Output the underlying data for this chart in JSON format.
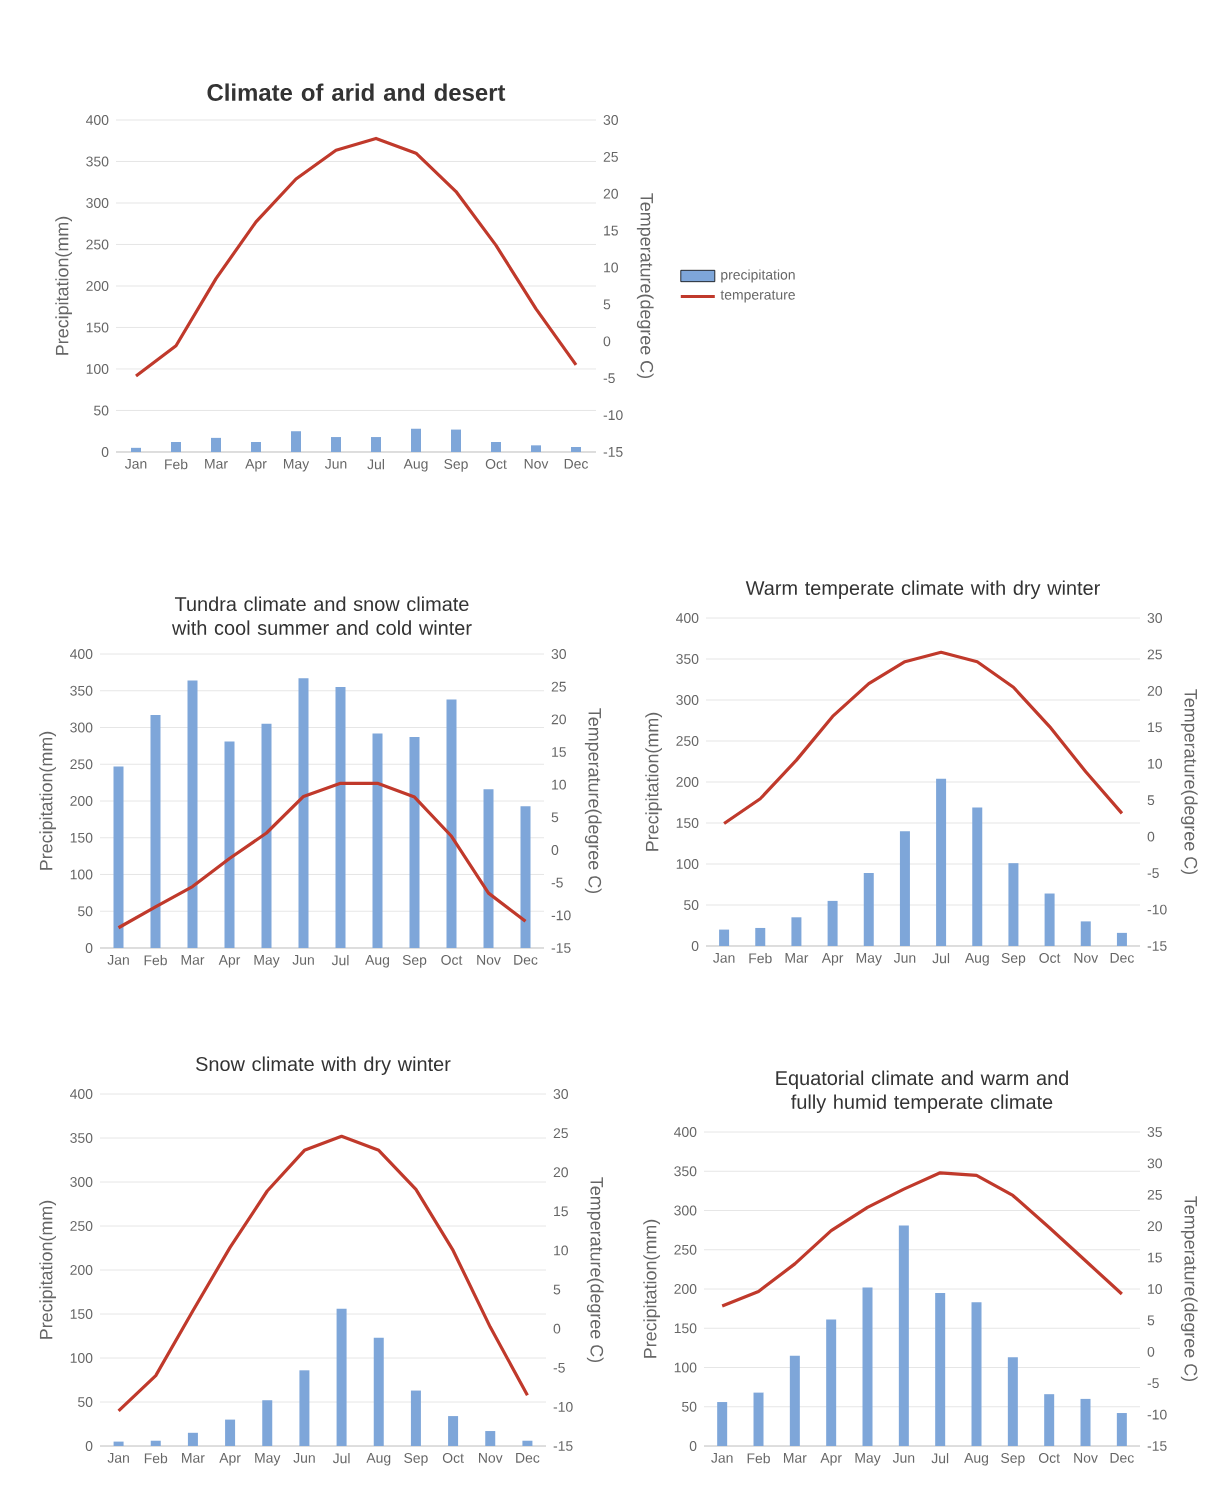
{
  "chart_data": [
    {
      "type": "bar",
      "title": "Climate of arid and desert",
      "categories": [
        "Jan",
        "Feb",
        "Mar",
        "Apr",
        "May",
        "Jun",
        "Jul",
        "Aug",
        "Sep",
        "Oct",
        "Nov",
        "Dec"
      ],
      "ylabel": "Precipitation(mm)",
      "y2label": "Temperature(degree C)",
      "ylim": [
        0,
        400
      ],
      "yticks": [
        0,
        50,
        100,
        150,
        200,
        250,
        300,
        350,
        400
      ],
      "y2lim": [
        -15,
        30
      ],
      "y2ticks": [
        -15,
        -10,
        -5,
        0,
        5,
        10,
        15,
        20,
        25,
        30
      ],
      "grid": "y",
      "legend": "right",
      "series": [
        {
          "name": "precipitation",
          "color": "#7ea6d9",
          "values": [
            5,
            12,
            17,
            12,
            25,
            18,
            18,
            28,
            27,
            12,
            8,
            6
          ]
        },
        {
          "name": "temperature",
          "type": "line",
          "axis": "y2",
          "color": "#c0392b",
          "values": [
            -4.7,
            -0.6,
            8.5,
            16.2,
            22,
            25.9,
            27.5,
            25.5,
            20.3,
            13,
            4.4,
            -3.2
          ]
        }
      ]
    },
    {
      "type": "bar",
      "title": "Tundra climate and snow climate with cool summer and cold winter",
      "categories": [
        "Jan",
        "Feb",
        "Mar",
        "Apr",
        "May",
        "Jun",
        "Jul",
        "Aug",
        "Sep",
        "Oct",
        "Nov",
        "Dec"
      ],
      "ylabel": "Precipitation(mm)",
      "y2label": "Temperature(degree C)",
      "ylim": [
        0,
        400
      ],
      "yticks": [
        0,
        50,
        100,
        150,
        200,
        250,
        300,
        350,
        400
      ],
      "y2lim": [
        -15,
        30
      ],
      "y2ticks": [
        -15,
        -10,
        -5,
        0,
        5,
        10,
        15,
        20,
        25,
        30
      ],
      "grid": "y",
      "series": [
        {
          "color": "#7ea6d9",
          "values": [
            247,
            317,
            364,
            281,
            305,
            367,
            355,
            292,
            287,
            338,
            216,
            193
          ]
        },
        {
          "type": "line",
          "axis": "y2",
          "color": "#c0392b",
          "values": [
            -11.9,
            -8.7,
            -5.6,
            -1.3,
            2.6,
            8.2,
            10.2,
            10.2,
            8.1,
            2.1,
            -6.6,
            -10.9
          ]
        }
      ]
    },
    {
      "type": "bar",
      "title": "Warm temperate climate with dry winter",
      "categories": [
        "Jan",
        "Feb",
        "Mar",
        "Apr",
        "May",
        "Jun",
        "Jul",
        "Aug",
        "Sep",
        "Oct",
        "Nov",
        "Dec"
      ],
      "ylabel": "Precipitation(mm)",
      "y2label": "Temperature(degree C)",
      "ylim": [
        0,
        400
      ],
      "yticks": [
        0,
        50,
        100,
        150,
        200,
        250,
        300,
        350,
        400
      ],
      "y2lim": [
        -15,
        30
      ],
      "y2ticks": [
        -15,
        -10,
        -5,
        0,
        5,
        10,
        15,
        20,
        25,
        30
      ],
      "grid": "y",
      "series": [
        {
          "color": "#7ea6d9",
          "values": [
            20,
            22,
            35,
            55,
            89,
            140,
            204,
            169,
            101,
            64,
            30,
            16
          ]
        },
        {
          "type": "line",
          "axis": "y2",
          "color": "#c0392b",
          "values": [
            1.8,
            5.2,
            10.5,
            16.5,
            21,
            24,
            25.3,
            24,
            20.5,
            15.1,
            8.9,
            3.2
          ]
        }
      ]
    },
    {
      "type": "bar",
      "title": "Snow climate with dry winter",
      "categories": [
        "Jan",
        "Feb",
        "Mar",
        "Apr",
        "May",
        "Jun",
        "Jul",
        "Aug",
        "Sep",
        "Oct",
        "Nov",
        "Dec"
      ],
      "ylabel": "Precipitation(mm)",
      "y2label": "Temperature(degree C)",
      "ylim": [
        0,
        400
      ],
      "yticks": [
        0,
        50,
        100,
        150,
        200,
        250,
        300,
        350,
        400
      ],
      "y2lim": [
        -15,
        30
      ],
      "y2ticks": [
        -15,
        -10,
        -5,
        0,
        5,
        10,
        15,
        20,
        25,
        30
      ],
      "grid": "y",
      "series": [
        {
          "color": "#7ea6d9",
          "values": [
            5,
            6,
            15,
            30,
            52,
            86,
            156,
            123,
            63,
            34,
            17,
            6
          ]
        },
        {
          "type": "line",
          "axis": "y2",
          "color": "#c0392b",
          "values": [
            -10.5,
            -6,
            2.3,
            10.4,
            17.6,
            22.8,
            24.6,
            22.8,
            17.8,
            10,
            0.2,
            -8.5
          ]
        }
      ]
    },
    {
      "type": "bar",
      "title": "Equatorial climate and warm and fully humid temperate climate",
      "categories": [
        "Jan",
        "Feb",
        "Mar",
        "Apr",
        "May",
        "Jun",
        "Jul",
        "Aug",
        "Sep",
        "Oct",
        "Nov",
        "Dec"
      ],
      "ylabel": "Precipitation(mm)",
      "y2label": "Temperature(degree C)",
      "ylim": [
        0,
        400
      ],
      "yticks": [
        0,
        50,
        100,
        150,
        200,
        250,
        300,
        350,
        400
      ],
      "y2lim": [
        -15,
        35
      ],
      "y2ticks": [
        -15,
        -10,
        -5,
        0,
        5,
        10,
        15,
        20,
        25,
        30,
        35
      ],
      "grid": "y",
      "series": [
        {
          "color": "#7ea6d9",
          "values": [
            56,
            68,
            115,
            161,
            202,
            281,
            195,
            183,
            113,
            66,
            60,
            42
          ]
        },
        {
          "type": "line",
          "axis": "y2",
          "color": "#c0392b",
          "values": [
            7.3,
            9.6,
            14,
            19.3,
            23,
            25.9,
            28.5,
            28.1,
            24.9,
            19.8,
            14.5,
            9.2
          ]
        }
      ]
    }
  ]
}
